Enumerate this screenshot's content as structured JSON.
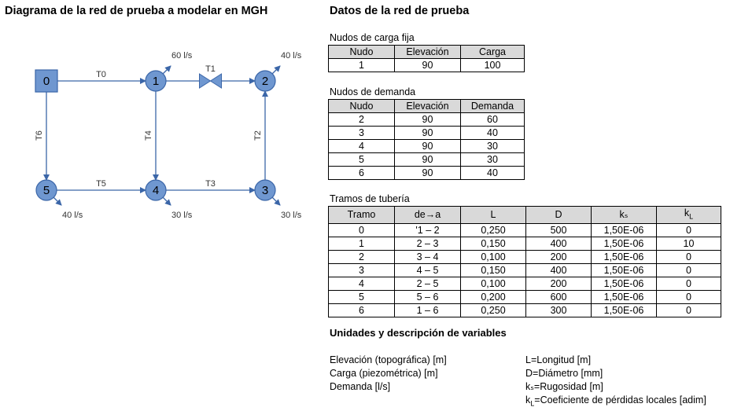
{
  "diagram": {
    "title": "Diagrama de la red de prueba a modelar en MGH",
    "nodes": [
      {
        "id": "0",
        "shape": "square"
      },
      {
        "id": "1",
        "shape": "circle"
      },
      {
        "id": "2",
        "shape": "circle"
      },
      {
        "id": "3",
        "shape": "circle"
      },
      {
        "id": "4",
        "shape": "circle"
      },
      {
        "id": "5",
        "shape": "circle"
      }
    ],
    "pipes": [
      {
        "label": "T0",
        "from": "0",
        "to": "1"
      },
      {
        "label": "T1",
        "from": "1",
        "to": "2",
        "valve": true
      },
      {
        "label": "T2",
        "from": "3",
        "to": "2"
      },
      {
        "label": "T3",
        "from": "4",
        "to": "3"
      },
      {
        "label": "T4",
        "from": "1",
        "to": "4"
      },
      {
        "label": "T5",
        "from": "5",
        "to": "4"
      },
      {
        "label": "T6",
        "from": "0",
        "to": "5"
      }
    ],
    "demands": [
      {
        "node": "1",
        "label": "60 l/s"
      },
      {
        "node": "2",
        "label": "40 l/s"
      },
      {
        "node": "3",
        "label": "30 l/s"
      },
      {
        "node": "4",
        "label": "30 l/s"
      },
      {
        "node": "5",
        "label": "40 l/s"
      }
    ],
    "colors": {
      "node_fill": "#6f97d0",
      "node_stroke": "#3b66a8",
      "line": "#3b66a8"
    }
  },
  "data": {
    "title": "Datos de la red de prueba",
    "fixed_head": {
      "caption": "Nudos de carga fija",
      "headers": [
        "Nudo",
        "Elevación",
        "Carga"
      ],
      "rows": [
        [
          "1",
          "90",
          "100"
        ]
      ]
    },
    "demand_nodes": {
      "caption": "Nudos de demanda",
      "headers": [
        "Nudo",
        "Elevación",
        "Demanda"
      ],
      "rows": [
        [
          "2",
          "90",
          "60"
        ],
        [
          "3",
          "90",
          "40"
        ],
        [
          "4",
          "90",
          "30"
        ],
        [
          "5",
          "90",
          "30"
        ],
        [
          "6",
          "90",
          "40"
        ]
      ]
    },
    "pipes": {
      "caption": "Tramos de tubería",
      "headers": [
        "Tramo",
        "de→a",
        "L",
        "D",
        "kₛ",
        "kL"
      ],
      "rows": [
        [
          "0",
          "'1 – 2",
          "0,250",
          "500",
          "1,50E-06",
          "0"
        ],
        [
          "1",
          "2 – 3",
          "0,150",
          "400",
          "1,50E-06",
          "10"
        ],
        [
          "2",
          "3 – 4",
          "0,100",
          "200",
          "1,50E-06",
          "0"
        ],
        [
          "3",
          "4 – 5",
          "0,150",
          "400",
          "1,50E-06",
          "0"
        ],
        [
          "4",
          "2 – 5",
          "0,100",
          "200",
          "1,50E-06",
          "0"
        ],
        [
          "5",
          "5 – 6",
          "0,200",
          "600",
          "1,50E-06",
          "0"
        ],
        [
          "6",
          "1 – 6",
          "0,250",
          "300",
          "1,50E-06",
          "0"
        ]
      ]
    }
  },
  "units": {
    "title": "Unidades y descripción de variables",
    "left": [
      "Elevación  (topográfica) [m]",
      "Carga (piezométrica) [m]",
      "Demanda [l/s]"
    ],
    "right": [
      "L=Longitud [m]",
      "D=Diámetro [mm]",
      "kₛ=Rugosidad [m]",
      "kL=Coeficiente de pérdidas locales [adim]"
    ]
  }
}
